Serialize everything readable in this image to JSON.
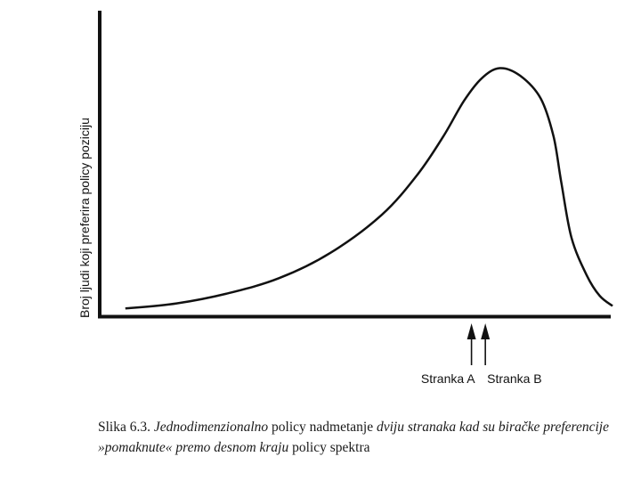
{
  "chart_data": {
    "type": "area",
    "title": "",
    "xlabel": "",
    "ylabel": "Broj ljudi koji preferira policy poziciju",
    "x_ticks": [],
    "y_ticks": [],
    "grid": false,
    "curve": {
      "x": [
        0.05,
        0.15,
        0.25,
        0.35,
        0.45,
        0.55,
        0.62,
        0.67,
        0.71,
        0.745,
        0.78,
        0.82,
        0.86,
        0.885,
        0.9,
        0.92,
        0.95,
        0.975,
        1.0
      ],
      "y": [
        0.02,
        0.04,
        0.08,
        0.14,
        0.24,
        0.39,
        0.55,
        0.7,
        0.84,
        0.93,
        0.97,
        0.94,
        0.85,
        0.7,
        0.52,
        0.3,
        0.15,
        0.07,
        0.03
      ]
    },
    "markers": [
      {
        "label": "Stranka A",
        "x": 0.725
      },
      {
        "label": "Stranka B",
        "x": 0.752
      }
    ]
  },
  "caption": {
    "prefix": "Slika 6.3.",
    "part1_italic": "Jednodimenzionalno",
    "part2": "policy nadmetanje",
    "part3_italic": "dviju stranaka kad su biračke preferencije »pomaknute« premo desnom kraju",
    "part4": "policy spektra"
  },
  "colors": {
    "ink": "#111111",
    "background": "#ffffff"
  }
}
